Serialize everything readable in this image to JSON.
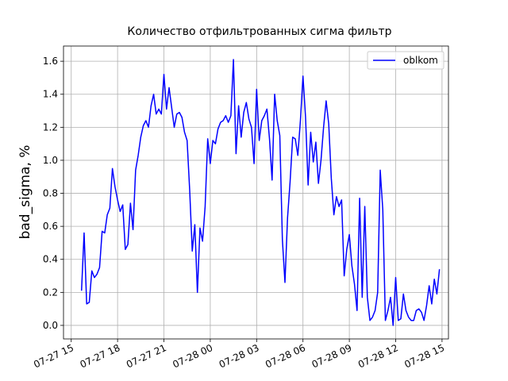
{
  "chart_data": {
    "type": "line",
    "title": "Количество отфильтрованных сигма фильтр",
    "y_label": "bad_sigma, %",
    "x": [
      "07-27 15:40",
      "07-27 15:50",
      "07-27 16:00",
      "07-27 16:10",
      "07-27 16:20",
      "07-27 16:30",
      "07-27 16:40",
      "07-27 16:50",
      "07-27 17:00",
      "07-27 17:10",
      "07-27 17:20",
      "07-27 17:30",
      "07-27 17:40",
      "07-27 17:50",
      "07-27 18:00",
      "07-27 18:10",
      "07-27 18:20",
      "07-27 18:30",
      "07-27 18:40",
      "07-27 18:50",
      "07-27 19:00",
      "07-27 19:10",
      "07-27 19:20",
      "07-27 19:30",
      "07-27 19:40",
      "07-27 19:50",
      "07-27 20:00",
      "07-27 20:10",
      "07-27 20:20",
      "07-27 20:30",
      "07-27 20:40",
      "07-27 20:50",
      "07-27 21:00",
      "07-27 21:10",
      "07-27 21:20",
      "07-27 21:30",
      "07-27 21:40",
      "07-27 21:50",
      "07-27 22:00",
      "07-27 22:10",
      "07-27 22:20",
      "07-27 22:30",
      "07-27 22:40",
      "07-27 22:50",
      "07-27 23:00",
      "07-27 23:10",
      "07-27 23:20",
      "07-27 23:30",
      "07-27 23:40",
      "07-27 23:50",
      "07-28 00:00",
      "07-28 00:10",
      "07-28 00:20",
      "07-28 00:30",
      "07-28 00:40",
      "07-28 00:50",
      "07-28 01:00",
      "07-28 01:10",
      "07-28 01:20",
      "07-28 01:30",
      "07-28 01:40",
      "07-28 01:50",
      "07-28 02:00",
      "07-28 02:10",
      "07-28 02:20",
      "07-28 02:30",
      "07-28 02:40",
      "07-28 02:50",
      "07-28 03:00",
      "07-28 03:10",
      "07-28 03:20",
      "07-28 03:30",
      "07-28 03:40",
      "07-28 03:50",
      "07-28 04:00",
      "07-28 04:10",
      "07-28 04:20",
      "07-28 04:30",
      "07-28 04:40",
      "07-28 04:50",
      "07-28 05:00",
      "07-28 05:10",
      "07-28 05:20",
      "07-28 05:30",
      "07-28 05:40",
      "07-28 05:50",
      "07-28 06:00",
      "07-28 06:10",
      "07-28 06:20",
      "07-28 06:30",
      "07-28 06:40",
      "07-28 06:50",
      "07-28 07:00",
      "07-28 07:10",
      "07-28 07:20",
      "07-28 07:30",
      "07-28 07:40",
      "07-28 07:50",
      "07-28 08:00",
      "07-28 08:10",
      "07-28 08:20",
      "07-28 08:30",
      "07-28 08:40",
      "07-28 08:50",
      "07-28 09:00",
      "07-28 09:10",
      "07-28 09:20",
      "07-28 09:30",
      "07-28 09:40",
      "07-28 09:50",
      "07-28 10:00",
      "07-28 10:10",
      "07-28 10:20",
      "07-28 10:30",
      "07-28 10:40",
      "07-28 10:50",
      "07-28 11:00",
      "07-28 11:10",
      "07-28 11:20",
      "07-28 11:30",
      "07-28 11:40",
      "07-28 11:50",
      "07-28 12:00",
      "07-28 12:10",
      "07-28 12:20",
      "07-28 12:30",
      "07-28 12:40",
      "07-28 12:50",
      "07-28 13:00",
      "07-28 13:10",
      "07-28 13:20",
      "07-28 13:30",
      "07-28 13:40",
      "07-28 13:50",
      "07-28 14:00",
      "07-28 14:10",
      "07-28 14:20",
      "07-28 14:30",
      "07-28 14:40",
      "07-28 14:50"
    ],
    "series": [
      {
        "name": "oblkom",
        "color": "#0000ff",
        "values": [
          0.21,
          0.56,
          0.13,
          0.14,
          0.33,
          0.29,
          0.31,
          0.35,
          0.57,
          0.56,
          0.67,
          0.71,
          0.95,
          0.84,
          0.76,
          0.69,
          0.73,
          0.46,
          0.49,
          0.74,
          0.58,
          0.94,
          1.03,
          1.14,
          1.21,
          1.24,
          1.2,
          1.33,
          1.4,
          1.28,
          1.31,
          1.28,
          1.52,
          1.31,
          1.44,
          1.32,
          1.2,
          1.28,
          1.29,
          1.26,
          1.17,
          1.12,
          0.82,
          0.45,
          0.61,
          0.2,
          0.59,
          0.51,
          0.72,
          1.13,
          0.98,
          1.12,
          1.1,
          1.19,
          1.23,
          1.24,
          1.27,
          1.23,
          1.27,
          1.61,
          1.04,
          1.33,
          1.14,
          1.29,
          1.35,
          1.25,
          1.2,
          0.98,
          1.43,
          1.12,
          1.24,
          1.27,
          1.31,
          1.13,
          0.88,
          1.4,
          1.24,
          1.15,
          0.52,
          0.26,
          0.65,
          0.87,
          1.14,
          1.13,
          1.03,
          1.24,
          1.51,
          1.26,
          0.85,
          1.17,
          0.99,
          1.11,
          0.86,
          1.0,
          1.2,
          1.36,
          1.22,
          0.89,
          0.67,
          0.78,
          0.72,
          0.76,
          0.3,
          0.46,
          0.55,
          0.36,
          0.25,
          0.09,
          0.77,
          0.17,
          0.72,
          0.17,
          0.03,
          0.05,
          0.09,
          0.2,
          0.94,
          0.7,
          0.03,
          0.09,
          0.17,
          0.0,
          0.29,
          0.03,
          0.04,
          0.19,
          0.09,
          0.05,
          0.03,
          0.03,
          0.09,
          0.1,
          0.08,
          0.03,
          0.12,
          0.24,
          0.13,
          0.28,
          0.19,
          0.34
        ]
      }
    ],
    "xlim": [
      "07-27 14:30",
      "07-28 15:25"
    ],
    "xticks": [
      "07-27 15",
      "07-27 18",
      "07-27 21",
      "07-28 00",
      "07-28 03",
      "07-28 06",
      "07-28 09",
      "07-28 12",
      "07-28 15"
    ],
    "ylim": [
      -0.082,
      1.692
    ],
    "yticks": [
      {
        "value": 0,
        "label": "0.0"
      },
      0.2,
      0.4,
      0.6,
      0.8,
      {
        "value": 1,
        "label": "1.0"
      },
      1.2,
      1.4,
      1.6
    ],
    "grid": true,
    "legend": "upper right"
  }
}
